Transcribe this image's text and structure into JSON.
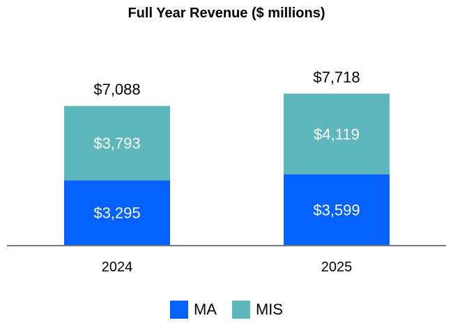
{
  "chart_data": {
    "type": "bar",
    "stacked": true,
    "title": "Full Year Revenue ($ millions)",
    "categories": [
      "2024",
      "2025"
    ],
    "series": [
      {
        "name": "MA",
        "values": [
          3295,
          3599
        ],
        "labels": [
          "$3,295",
          "$3,599"
        ],
        "color": "#0562FF"
      },
      {
        "name": "MIS",
        "values": [
          3793,
          4119
        ],
        "labels": [
          "$3,793",
          "$4,119"
        ],
        "color": "#5EB7BD"
      }
    ],
    "totals": [
      "$7,088",
      "$7,718"
    ],
    "ylim": [
      0,
      11000
    ],
    "grid": false,
    "legend": "bottom"
  }
}
